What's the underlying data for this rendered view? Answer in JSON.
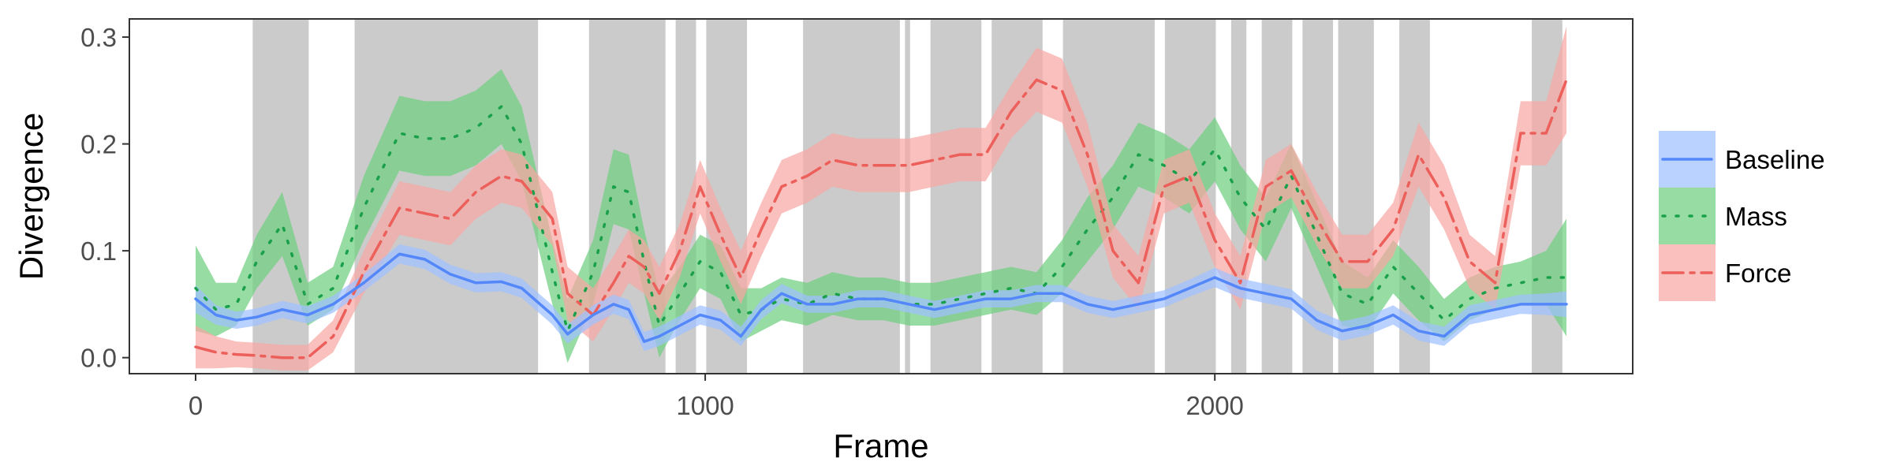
{
  "chart_data": {
    "type": "line",
    "xlabel": "Frame",
    "ylabel": "Divergence",
    "xlim": [
      -130,
      2820
    ],
    "ylim": [
      -0.015,
      0.317
    ],
    "x_ticks": [
      0,
      1000,
      2000
    ],
    "x_tick_labels": [
      "0",
      "1000",
      "2000"
    ],
    "y_ticks": [
      0.0,
      0.1,
      0.2,
      0.3
    ],
    "y_tick_labels": [
      "0.0",
      "0.1",
      "0.2",
      "0.3"
    ],
    "grid": false,
    "legend_position": "right",
    "shaded_frame_ranges": [
      [
        112,
        222
      ],
      [
        312,
        672
      ],
      [
        772,
        922
      ],
      [
        942,
        982
      ],
      [
        1002,
        1082
      ],
      [
        1192,
        1382
      ],
      [
        1392,
        1402
      ],
      [
        1442,
        1542
      ],
      [
        1562,
        1662
      ],
      [
        1702,
        1882
      ],
      [
        1902,
        2002
      ],
      [
        2032,
        2062
      ],
      [
        2092,
        2152
      ],
      [
        2172,
        2232
      ],
      [
        2242,
        2312
      ],
      [
        2362,
        2422
      ],
      [
        2622,
        2682
      ]
    ],
    "series": [
      {
        "name": "Baseline",
        "color": "#619cff",
        "line_color": "#5387fa",
        "band_color": "#a0c0ff",
        "dash": "",
        "x": [
          0,
          40,
          80,
          120,
          170,
          220,
          270,
          330,
          400,
          450,
          500,
          550,
          600,
          640,
          700,
          730,
          780,
          820,
          850,
          880,
          910,
          950,
          990,
          1030,
          1070,
          1110,
          1150,
          1200,
          1250,
          1300,
          1350,
          1400,
          1450,
          1500,
          1550,
          1600,
          1650,
          1700,
          1750,
          1800,
          1850,
          1900,
          1950,
          2000,
          2050,
          2100,
          2150,
          2200,
          2250,
          2300,
          2350,
          2400,
          2450,
          2500,
          2550,
          2600,
          2650,
          2690
        ],
        "values": [
          0.055,
          0.04,
          0.035,
          0.038,
          0.045,
          0.04,
          0.05,
          0.07,
          0.097,
          0.092,
          0.078,
          0.07,
          0.071,
          0.065,
          0.04,
          0.022,
          0.04,
          0.05,
          0.045,
          0.015,
          0.02,
          0.03,
          0.04,
          0.035,
          0.02,
          0.045,
          0.06,
          0.05,
          0.05,
          0.055,
          0.055,
          0.05,
          0.045,
          0.05,
          0.055,
          0.055,
          0.06,
          0.06,
          0.05,
          0.045,
          0.05,
          0.055,
          0.065,
          0.075,
          0.065,
          0.06,
          0.055,
          0.035,
          0.025,
          0.03,
          0.04,
          0.025,
          0.02,
          0.04,
          0.045,
          0.05,
          0.05,
          0.05
        ],
        "band_halfwidth": [
          0.013,
          0.009,
          0.008,
          0.008,
          0.008,
          0.008,
          0.008,
          0.008,
          0.009,
          0.009,
          0.009,
          0.009,
          0.009,
          0.009,
          0.009,
          0.009,
          0.009,
          0.009,
          0.009,
          0.009,
          0.009,
          0.009,
          0.009,
          0.009,
          0.009,
          0.009,
          0.009,
          0.008,
          0.008,
          0.008,
          0.008,
          0.008,
          0.008,
          0.008,
          0.008,
          0.008,
          0.008,
          0.008,
          0.008,
          0.008,
          0.008,
          0.008,
          0.008,
          0.009,
          0.009,
          0.009,
          0.009,
          0.009,
          0.009,
          0.009,
          0.009,
          0.009,
          0.009,
          0.009,
          0.009,
          0.009,
          0.01,
          0.012
        ]
      },
      {
        "name": "Mass",
        "color": "#00ba38",
        "line_color": "#1aa04a",
        "band_color": "#6fcf7f",
        "dash": "3 14",
        "x": [
          0,
          40,
          80,
          120,
          170,
          220,
          270,
          330,
          400,
          450,
          500,
          550,
          600,
          640,
          700,
          730,
          780,
          820,
          850,
          880,
          910,
          950,
          990,
          1030,
          1070,
          1110,
          1150,
          1200,
          1250,
          1300,
          1350,
          1400,
          1450,
          1500,
          1550,
          1600,
          1650,
          1700,
          1750,
          1800,
          1850,
          1900,
          1950,
          2000,
          2050,
          2100,
          2150,
          2200,
          2250,
          2300,
          2350,
          2400,
          2450,
          2500,
          2550,
          2600,
          2650,
          2690
        ],
        "values": [
          0.065,
          0.045,
          0.05,
          0.09,
          0.125,
          0.05,
          0.065,
          0.14,
          0.21,
          0.205,
          0.205,
          0.215,
          0.235,
          0.2,
          0.08,
          0.025,
          0.08,
          0.16,
          0.155,
          0.09,
          0.03,
          0.06,
          0.09,
          0.08,
          0.04,
          0.045,
          0.055,
          0.05,
          0.06,
          0.055,
          0.055,
          0.05,
          0.05,
          0.055,
          0.06,
          0.065,
          0.06,
          0.085,
          0.12,
          0.15,
          0.19,
          0.18,
          0.165,
          0.195,
          0.15,
          0.12,
          0.17,
          0.115,
          0.06,
          0.05,
          0.085,
          0.06,
          0.035,
          0.055,
          0.065,
          0.07,
          0.075,
          0.075
        ],
        "band_halfwidth": [
          0.04,
          0.025,
          0.02,
          0.025,
          0.03,
          0.02,
          0.02,
          0.03,
          0.035,
          0.035,
          0.035,
          0.035,
          0.035,
          0.035,
          0.03,
          0.03,
          0.03,
          0.035,
          0.035,
          0.03,
          0.03,
          0.025,
          0.025,
          0.025,
          0.025,
          0.02,
          0.02,
          0.02,
          0.02,
          0.02,
          0.02,
          0.02,
          0.02,
          0.02,
          0.02,
          0.02,
          0.02,
          0.025,
          0.03,
          0.03,
          0.03,
          0.03,
          0.03,
          0.03,
          0.03,
          0.03,
          0.03,
          0.03,
          0.03,
          0.025,
          0.025,
          0.025,
          0.02,
          0.02,
          0.02,
          0.02,
          0.025,
          0.055
        ]
      },
      {
        "name": "Force",
        "color": "#f8766d",
        "line_color": "#ec5f5a",
        "band_color": "#f7a7a4",
        "dash": "26 9 5 9",
        "x": [
          0,
          40,
          80,
          120,
          170,
          220,
          270,
          330,
          400,
          450,
          500,
          550,
          600,
          640,
          700,
          730,
          780,
          820,
          850,
          880,
          910,
          950,
          990,
          1030,
          1070,
          1110,
          1150,
          1200,
          1250,
          1300,
          1350,
          1400,
          1450,
          1500,
          1550,
          1600,
          1650,
          1700,
          1750,
          1800,
          1850,
          1900,
          1950,
          2000,
          2050,
          2100,
          2150,
          2200,
          2250,
          2300,
          2350,
          2400,
          2450,
          2500,
          2550,
          2600,
          2650,
          2690
        ],
        "values": [
          0.01,
          0.005,
          0.003,
          0.002,
          0.0,
          0.0,
          0.02,
          0.08,
          0.14,
          0.135,
          0.13,
          0.155,
          0.17,
          0.165,
          0.13,
          0.06,
          0.04,
          0.07,
          0.095,
          0.085,
          0.06,
          0.1,
          0.16,
          0.115,
          0.075,
          0.12,
          0.16,
          0.17,
          0.185,
          0.18,
          0.18,
          0.18,
          0.185,
          0.19,
          0.19,
          0.23,
          0.26,
          0.25,
          0.19,
          0.1,
          0.07,
          0.16,
          0.17,
          0.11,
          0.07,
          0.16,
          0.175,
          0.13,
          0.09,
          0.09,
          0.12,
          0.19,
          0.15,
          0.09,
          0.07,
          0.21,
          0.21,
          0.26
        ],
        "band_halfwidth": [
          0.02,
          0.015,
          0.012,
          0.012,
          0.012,
          0.012,
          0.015,
          0.02,
          0.025,
          0.025,
          0.025,
          0.025,
          0.025,
          0.025,
          0.025,
          0.025,
          0.025,
          0.025,
          0.025,
          0.025,
          0.025,
          0.025,
          0.025,
          0.025,
          0.025,
          0.025,
          0.025,
          0.025,
          0.025,
          0.025,
          0.025,
          0.025,
          0.025,
          0.025,
          0.025,
          0.025,
          0.03,
          0.03,
          0.03,
          0.025,
          0.025,
          0.025,
          0.025,
          0.025,
          0.025,
          0.025,
          0.025,
          0.025,
          0.025,
          0.025,
          0.025,
          0.03,
          0.03,
          0.025,
          0.025,
          0.03,
          0.03,
          0.05
        ]
      }
    ]
  }
}
